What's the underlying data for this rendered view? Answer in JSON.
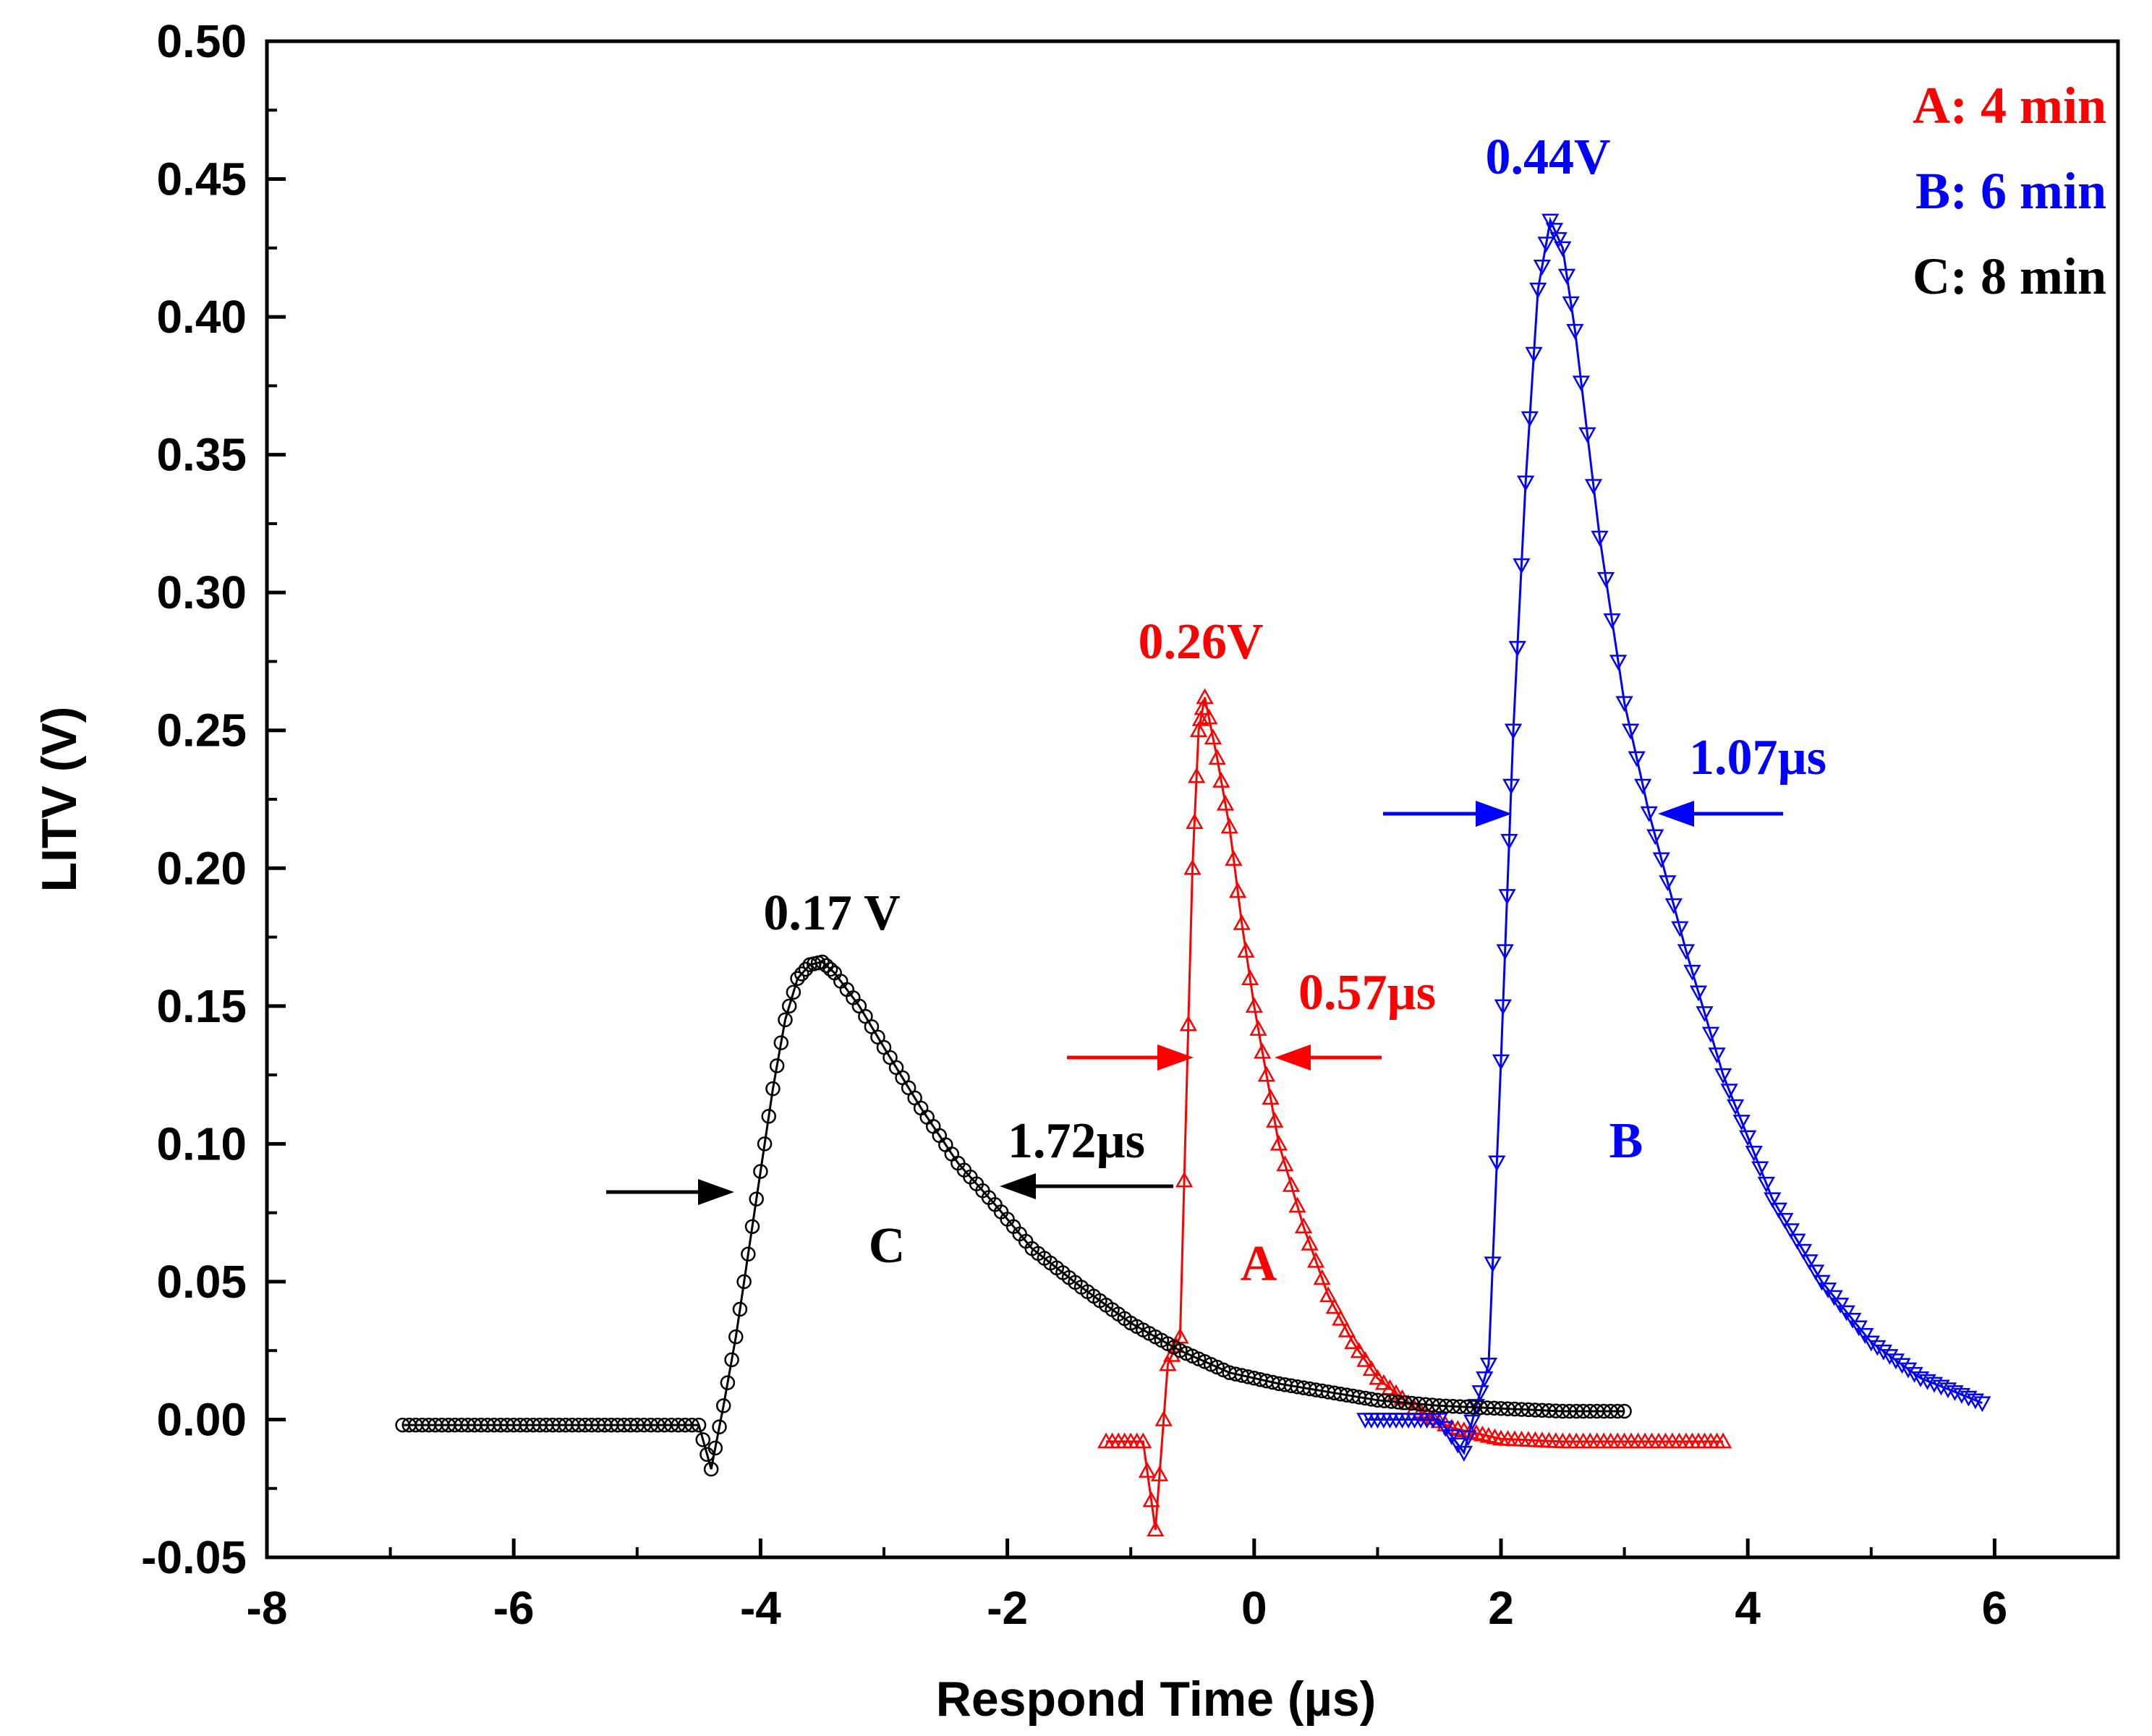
{
  "chart_data": {
    "type": "scatter",
    "title": "",
    "xlabel": "Respond Time (µs)",
    "ylabel": "LITV (V)",
    "xlim": [
      -8,
      7
    ],
    "ylim": [
      -0.05,
      0.5
    ],
    "xticks": [
      "-8",
      "-6",
      "-4",
      "-2",
      "0",
      "2",
      "4",
      "6"
    ],
    "yticks": [
      "-0.05",
      "0.00",
      "0.05",
      "0.10",
      "0.15",
      "0.20",
      "0.25",
      "0.30",
      "0.35",
      "0.40",
      "0.45",
      "0.50"
    ],
    "legend": [
      {
        "label": "A: 4 min",
        "color": "#ff0000"
      },
      {
        "label": "B: 6 min",
        "color": "#0000ff"
      },
      {
        "label": "C: 8 min",
        "color": "#000000"
      }
    ],
    "series": [
      {
        "name": "A",
        "label": "A",
        "color": "#ff0000",
        "marker": "triangle",
        "x": [
          -1.2,
          -0.9,
          -0.8,
          -0.7,
          -0.6,
          -0.5,
          -0.45,
          -0.4,
          -0.3,
          -0.2,
          -0.1,
          0.0,
          0.1,
          0.2,
          0.4,
          0.6,
          0.8,
          1.0,
          1.3,
          1.6,
          2.0,
          2.5,
          3.0,
          3.5,
          3.8
        ],
        "y": [
          -0.008,
          -0.008,
          -0.04,
          0.02,
          0.03,
          0.2,
          0.25,
          0.262,
          0.24,
          0.215,
          0.18,
          0.15,
          0.125,
          0.1,
          0.07,
          0.045,
          0.028,
          0.015,
          0.004,
          -0.003,
          -0.007,
          -0.008,
          -0.008,
          -0.008,
          -0.008
        ],
        "peak_label": "0.26V",
        "fwhm_label": "0.57µs"
      },
      {
        "name": "B",
        "label": "B",
        "color": "#0000ff",
        "marker": "inverted-triangle",
        "x": [
          0.9,
          1.2,
          1.5,
          1.7,
          1.8,
          1.9,
          2.0,
          2.05,
          2.1,
          2.2,
          2.3,
          2.4,
          2.5,
          2.6,
          2.8,
          3.0,
          3.2,
          3.5,
          3.8,
          4.2,
          4.6,
          5.0,
          5.4,
          5.9
        ],
        "y": [
          0.0,
          0.0,
          0.0,
          -0.012,
          0.005,
          0.02,
          0.13,
          0.19,
          0.25,
          0.34,
          0.41,
          0.435,
          0.425,
          0.395,
          0.32,
          0.26,
          0.22,
          0.17,
          0.125,
          0.08,
          0.05,
          0.028,
          0.015,
          0.006
        ],
        "peak_label": "0.44V",
        "fwhm_label": "1.07µs"
      },
      {
        "name": "C",
        "label": "C",
        "color": "#000000",
        "marker": "circle",
        "x": [
          -6.9,
          -6.0,
          -5.0,
          -4.5,
          -4.4,
          -4.3,
          -4.2,
          -4.1,
          -4.0,
          -3.9,
          -3.8,
          -3.7,
          -3.6,
          -3.5,
          -3.4,
          -3.2,
          -3.0,
          -2.7,
          -2.4,
          -2.1,
          -1.8,
          -1.4,
          -1.0,
          -0.6,
          -0.2,
          0.2,
          0.6,
          1.0,
          1.5,
          2.0,
          2.5,
          3.0
        ],
        "y": [
          -0.002,
          -0.002,
          -0.002,
          -0.002,
          -0.018,
          0.005,
          0.03,
          0.06,
          0.09,
          0.12,
          0.145,
          0.16,
          0.165,
          0.166,
          0.162,
          0.15,
          0.135,
          0.113,
          0.093,
          0.078,
          0.062,
          0.048,
          0.035,
          0.025,
          0.017,
          0.013,
          0.01,
          0.007,
          0.005,
          0.004,
          0.003,
          0.003
        ],
        "peak_label": "0.17 V",
        "fwhm_label": "1.72µs"
      }
    ]
  }
}
